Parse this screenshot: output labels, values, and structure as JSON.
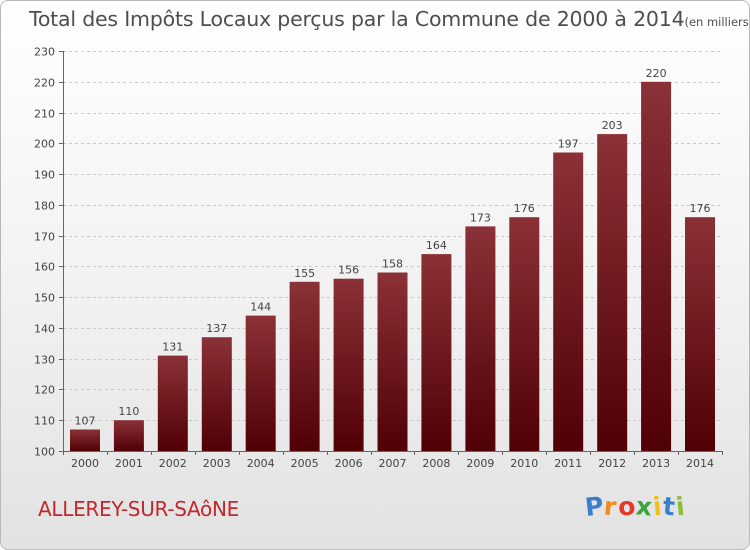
{
  "chart_data": {
    "type": "bar",
    "title": "Total des Impôts Locaux perçus par la Commune de 2000 à 2014",
    "unit_note": "(en milliers d'€)",
    "categories": [
      "2000",
      "2001",
      "2002",
      "2003",
      "2004",
      "2005",
      "2006",
      "2007",
      "2008",
      "2009",
      "2010",
      "2011",
      "2012",
      "2013",
      "2014"
    ],
    "values": [
      107,
      110,
      131,
      137,
      144,
      155,
      156,
      158,
      164,
      173,
      176,
      197,
      203,
      220,
      176
    ],
    "xlabel": "",
    "ylabel": "",
    "ylim": [
      100,
      230
    ],
    "yticks": [
      100,
      110,
      120,
      130,
      140,
      150,
      160,
      170,
      180,
      190,
      200,
      210,
      220,
      230
    ],
    "grid": true,
    "legend": "none",
    "bar_color_top": "#8b3138",
    "bar_color_bottom": "#500005",
    "grid_color": "#c8c8c8"
  },
  "footer": {
    "commune": "ALLEREY-SUR-SAôNE",
    "brand": "Proxiti",
    "brand_letters": [
      {
        "ch": "P",
        "color": "#3a7fc8"
      },
      {
        "ch": "r",
        "color": "#f08a1c"
      },
      {
        "ch": "o",
        "color": "#e23a2a"
      },
      {
        "ch": "x",
        "color": "#3aa63c"
      },
      {
        "ch": "i",
        "color": "#f0c020"
      },
      {
        "ch": "t",
        "color": "#3a7fc8"
      },
      {
        "ch": "i",
        "color": "#8bbf3a"
      }
    ]
  }
}
